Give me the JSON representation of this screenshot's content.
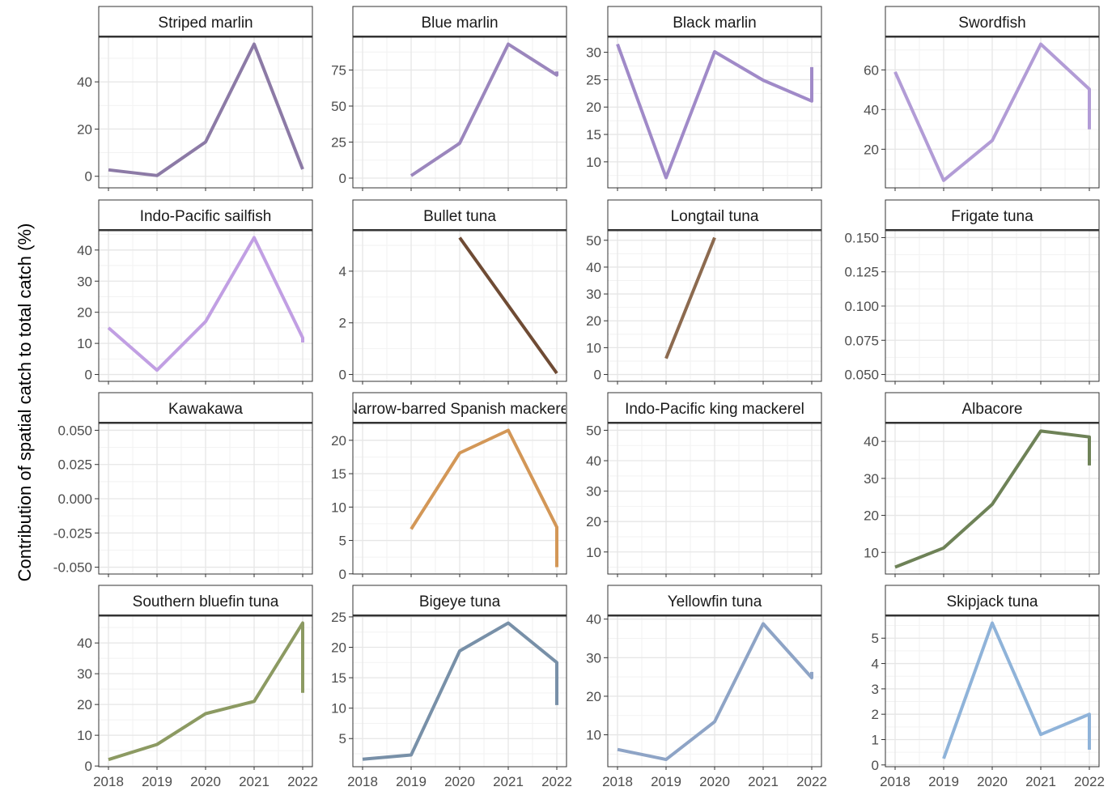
{
  "figure": {
    "ylabel": "Contribution of spatial catch to total catch (%)",
    "x_ticks": [
      "2018",
      "2019",
      "2020",
      "2021",
      "2022"
    ]
  },
  "chart_data": [
    {
      "type": "line",
      "title": "Striped marlin",
      "xlim": [
        2018,
        2022
      ],
      "ylim": [
        -2,
        56
      ],
      "y_ticks": [
        0,
        20,
        40
      ],
      "color": "#8c7aa6",
      "points": [
        [
          2018,
          2.7
        ],
        [
          2019,
          0.3
        ],
        [
          2020,
          14.5
        ],
        [
          2021,
          56
        ],
        [
          2022,
          3
        ]
      ]
    },
    {
      "type": "line",
      "title": "Blue marlin",
      "xlim": [
        2018,
        2022
      ],
      "ylim": [
        -2,
        93
      ],
      "y_ticks": [
        0,
        25,
        50,
        75
      ],
      "color": "#9b86bd",
      "points": [
        [
          2019,
          1.7
        ],
        [
          2020,
          24.2
        ],
        [
          2021,
          93
        ],
        [
          2022,
          71.5
        ],
        [
          2022,
          74
        ]
      ]
    },
    {
      "type": "line",
      "title": "Black marlin",
      "xlim": [
        2018,
        2022
      ],
      "ylim": [
        6.5,
        31.5
      ],
      "y_ticks": [
        10,
        15,
        20,
        25,
        30
      ],
      "color": "#a08ac8",
      "points": [
        [
          2018,
          31.5
        ],
        [
          2019,
          7.1
        ],
        [
          2020,
          30.1
        ],
        [
          2021,
          24.9
        ],
        [
          2022,
          21.1
        ],
        [
          2022,
          27.3
        ]
      ]
    },
    {
      "type": "line",
      "title": "Swordfish",
      "xlim": [
        2018,
        2022
      ],
      "ylim": [
        4,
        73
      ],
      "y_ticks": [
        20,
        40,
        60
      ],
      "color": "#b29cd6",
      "points": [
        [
          2018,
          59
        ],
        [
          2019,
          4.3
        ],
        [
          2020,
          24.4
        ],
        [
          2021,
          73
        ],
        [
          2022,
          50.3
        ],
        [
          2022,
          30
        ]
      ]
    },
    {
      "type": "line",
      "title": "Indo-Pacific sailfish",
      "xlim": [
        2018,
        2022
      ],
      "ylim": [
        0,
        44
      ],
      "y_ticks": [
        0,
        10,
        20,
        30,
        40
      ],
      "color": "#c19fe3",
      "points": [
        [
          2018,
          15
        ],
        [
          2019,
          1.4
        ],
        [
          2020,
          17
        ],
        [
          2021,
          44
        ],
        [
          2022,
          11.8
        ],
        [
          2022,
          10.3
        ]
      ]
    },
    {
      "type": "line",
      "title": "Bullet tuna",
      "xlim": [
        2018,
        2022
      ],
      "ylim": [
        0,
        5.3
      ],
      "y_ticks": [
        0,
        2,
        4
      ],
      "color": "#6f4b34",
      "points": [
        [
          2020,
          5.3
        ],
        [
          2022,
          0.05
        ]
      ]
    },
    {
      "type": "line",
      "title": "Longtail tuna",
      "xlim": [
        2018,
        2022
      ],
      "ylim": [
        0,
        51
      ],
      "y_ticks": [
        0,
        10,
        20,
        30,
        40,
        50
      ],
      "color": "#8c6a4f",
      "points": [
        [
          2019,
          6
        ],
        [
          2020,
          51
        ]
      ]
    },
    {
      "type": "line",
      "title": "Frigate tuna",
      "xlim": [
        2018,
        2022
      ],
      "ylim": [
        0.05,
        0.15
      ],
      "y_ticks": [
        0.05,
        0.075,
        0.1,
        0.125,
        0.15
      ],
      "y_labels": [
        "0.050",
        "0.075",
        "0.100",
        "0.125",
        "0.150"
      ],
      "color": "#7a7a7a",
      "points": []
    },
    {
      "type": "line",
      "title": "Kawakawa",
      "xlim": [
        2018,
        2022
      ],
      "ylim": [
        -0.05,
        0.05
      ],
      "y_ticks": [
        -0.05,
        -0.025,
        0,
        0.025,
        0.05
      ],
      "y_labels": [
        "-0.050",
        "-0.025",
        "0.000",
        "0.025",
        "0.050"
      ],
      "color": "#7a7a7a",
      "points": []
    },
    {
      "type": "line",
      "title": "Narrow-barred Spanish mackerel",
      "xlim": [
        2018,
        2022
      ],
      "ylim": [
        1,
        21.5
      ],
      "y_ticks": [
        0,
        5,
        10,
        15,
        20
      ],
      "color": "#d39757",
      "points": [
        [
          2019,
          6.7
        ],
        [
          2020,
          18.1
        ],
        [
          2021,
          21.5
        ],
        [
          2022,
          7
        ],
        [
          2022,
          1
        ]
      ]
    },
    {
      "type": "line",
      "title": "Indo-Pacific king mackerel",
      "xlim": [
        2018,
        2022
      ],
      "ylim": [
        5,
        50
      ],
      "y_ticks": [
        10,
        20,
        30,
        40,
        50
      ],
      "color": "#7a7a7a",
      "points": []
    },
    {
      "type": "line",
      "title": "Albacore",
      "xlim": [
        2018,
        2022
      ],
      "ylim": [
        6,
        43
      ],
      "y_ticks": [
        10,
        20,
        30,
        40
      ],
      "color": "#6e8257",
      "points": [
        [
          2018,
          6
        ],
        [
          2019,
          11.2
        ],
        [
          2020,
          23
        ],
        [
          2021,
          42.8
        ],
        [
          2022,
          41.2
        ],
        [
          2022,
          33.5
        ]
      ]
    },
    {
      "type": "line",
      "title": "Southern bluefin tuna",
      "xlim": [
        2018,
        2022
      ],
      "ylim": [
        2,
        46.5
      ],
      "y_ticks": [
        0,
        10,
        20,
        30,
        40
      ],
      "color": "#8c9a62",
      "points": [
        [
          2018,
          2.1
        ],
        [
          2019,
          7
        ],
        [
          2020,
          17
        ],
        [
          2021,
          21
        ],
        [
          2022,
          46.5
        ],
        [
          2022,
          23.8
        ]
      ]
    },
    {
      "type": "line",
      "title": "Bigeye tuna",
      "xlim": [
        2018,
        2022
      ],
      "ylim": [
        1.5,
        24
      ],
      "y_ticks": [
        5,
        10,
        15,
        20,
        25
      ],
      "color": "#7890a8",
      "points": [
        [
          2018,
          1.6
        ],
        [
          2019,
          2.3
        ],
        [
          2020,
          19.4
        ],
        [
          2021,
          24
        ],
        [
          2022,
          17.5
        ],
        [
          2022,
          10.5
        ]
      ]
    },
    {
      "type": "line",
      "title": "Yellowfin tuna",
      "xlim": [
        2018,
        2022
      ],
      "ylim": [
        3.5,
        39
      ],
      "y_ticks": [
        10,
        20,
        30,
        40
      ],
      "color": "#8ea4c6",
      "points": [
        [
          2018,
          6.2
        ],
        [
          2019,
          3.6
        ],
        [
          2020,
          13.4
        ],
        [
          2021,
          38.8
        ],
        [
          2022,
          24.8
        ],
        [
          2022,
          26.3
        ]
      ]
    },
    {
      "type": "line",
      "title": "Skipjack tuna",
      "xlim": [
        2018,
        2022
      ],
      "ylim": [
        0.2,
        5.6
      ],
      "y_ticks": [
        0,
        1,
        2,
        3,
        4,
        5
      ],
      "color": "#8fb3d9",
      "points": [
        [
          2019,
          0.25
        ],
        [
          2020,
          5.6
        ],
        [
          2021,
          1.2
        ],
        [
          2022,
          2
        ],
        [
          2022,
          0.6
        ]
      ]
    }
  ]
}
